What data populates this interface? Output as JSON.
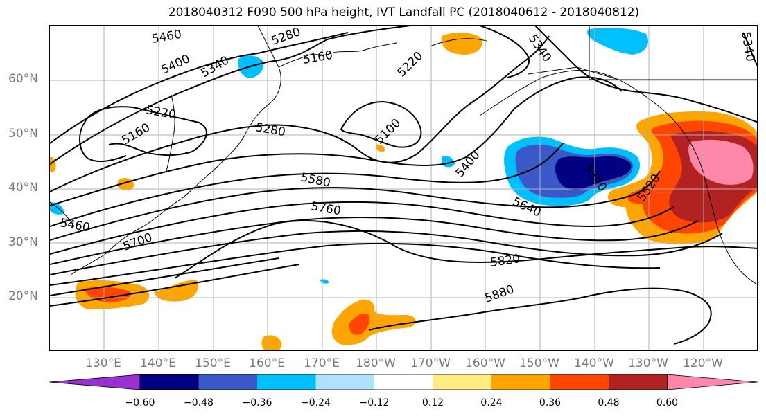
{
  "title": "2018040312 F090 500 hPa height, IVT Landfall PC (2018040612 - 2018040812)",
  "lat_labels": [
    "60°N",
    "50°N",
    "40°N",
    "30°N",
    "20°N"
  ],
  "lon_labels": [
    "130°E",
    "140°E",
    "150°E",
    "160°E",
    "170°E",
    "180°W",
    "170°W",
    "160°W",
    "150°W",
    "140°W",
    "130°W",
    "120°W"
  ],
  "height_contour_labels": [
    "5460",
    "5400",
    "5340",
    "5280",
    "5160",
    "5220",
    "5340",
    "5220",
    "5160",
    "5280",
    "5100",
    "5400",
    "5340",
    "5520",
    "5580",
    "5640",
    "5760",
    "5460",
    "5700",
    "5820",
    "5880",
    "5340"
  ],
  "colorbar": {
    "tick_labels": [
      "−0.60",
      "−0.48",
      "−0.36",
      "−0.24",
      "−0.12",
      "0.12",
      "0.24",
      "0.36",
      "0.48",
      "0.60"
    ],
    "bins": [
      {
        "color": "#9b30d0"
      },
      {
        "color": "#000080"
      },
      {
        "color": "#3a58c8"
      },
      {
        "color": "#00bfff"
      },
      {
        "color": "#b0e2ff"
      },
      {
        "color": "#ffffff"
      },
      {
        "color": "#ffec80"
      },
      {
        "color": "#ffa500"
      },
      {
        "color": "#ff4500"
      },
      {
        "color": "#b22222"
      },
      {
        "color": "#ff88aa"
      }
    ]
  },
  "colors": {
    "coast": "#000000",
    "contour": "#000000",
    "grid": "#b0b0b0"
  }
}
